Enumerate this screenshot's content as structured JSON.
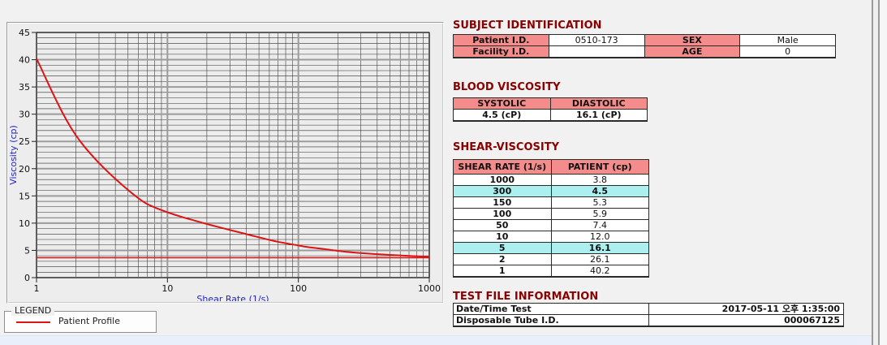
{
  "colors": {
    "section_title_red": "#8b0000",
    "table_header_pink": "#f48c8c",
    "highlight_cyan": "#abefef",
    "curve_red": "#dc1414",
    "axis_label_blue": "#2323c8",
    "grid_minor": "#2f2f2f",
    "grid_major": "#9b9b9b",
    "plot_bg": "#ececec"
  },
  "chart_data": {
    "type": "line",
    "title": "",
    "xlabel": "Shear Rate (1/s)",
    "ylabel": "Viscosity (cp)",
    "x_scale": "log",
    "xlim": [
      1,
      1000
    ],
    "ylim": [
      0,
      45
    ],
    "x_ticks": [
      1,
      10,
      100,
      1000
    ],
    "y_ticks": [
      0,
      5,
      10,
      15,
      20,
      25,
      30,
      35,
      40,
      45
    ],
    "grid": "major+minor",
    "legend_position": "below-left",
    "series": [
      {
        "name": "Patient Profile",
        "color": "#dc1414",
        "x": [
          1,
          2,
          5,
          10,
          50,
          100,
          150,
          300,
          1000
        ],
        "y": [
          40.2,
          26.1,
          16.1,
          12.0,
          7.4,
          5.9,
          5.3,
          4.5,
          3.8
        ]
      }
    ],
    "reference_line_y": 3.65
  },
  "legend": {
    "box_label": "LEGEND",
    "series_label": "Patient Profile"
  },
  "sections": {
    "subject": {
      "title": "SUBJECT IDENTIFICATION",
      "rows": [
        [
          "Patient I.D.",
          "0510-173",
          "SEX",
          "Male"
        ],
        [
          "Facility I.D.",
          "",
          "AGE",
          "0"
        ]
      ]
    },
    "blood": {
      "title": "BLOOD VISCOSITY",
      "headers": [
        "SYSTOLIC",
        "DIASTOLIC"
      ],
      "values": [
        "4.5 (cP)",
        "16.1 (cP)"
      ]
    },
    "shear": {
      "title": "SHEAR-VISCOSITY",
      "headers": [
        "SHEAR RATE (1/s)",
        "PATIENT (cp)"
      ],
      "rows": [
        {
          "rate": "1000",
          "patient": "3.8",
          "highlight": false
        },
        {
          "rate": "300",
          "patient": "4.5",
          "highlight": true
        },
        {
          "rate": "150",
          "patient": "5.3",
          "highlight": false
        },
        {
          "rate": "100",
          "patient": "5.9",
          "highlight": false
        },
        {
          "rate": "50",
          "patient": "7.4",
          "highlight": false
        },
        {
          "rate": "10",
          "patient": "12.0",
          "highlight": false
        },
        {
          "rate": "5",
          "patient": "16.1",
          "highlight": true
        },
        {
          "rate": "2",
          "patient": "26.1",
          "highlight": false
        },
        {
          "rate": "1",
          "patient": "40.2",
          "highlight": false
        }
      ]
    },
    "test_file": {
      "title": "TEST FILE INFORMATION",
      "rows": [
        {
          "label": "Date/Time Test",
          "value": "2017-05-11  오후 1:35:00"
        },
        {
          "label": "Disposable Tube I.D.",
          "value": "000067125"
        }
      ]
    }
  }
}
